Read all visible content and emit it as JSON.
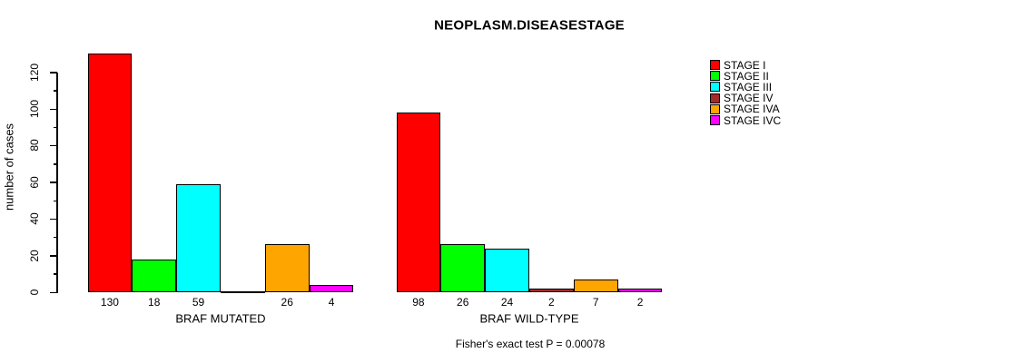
{
  "chart_data": {
    "type": "bar",
    "title": "NEOPLASM.DISEASESTAGE",
    "ylabel": "number of cases",
    "xlabel": "",
    "ylim": [
      0,
      120
    ],
    "y_major_tick_step": 20,
    "y_minor_tick_step": 10,
    "y_tick_labels": [
      "0",
      "20",
      "40",
      "60",
      "80",
      "100",
      "120"
    ],
    "grid": false,
    "legend_position": "right",
    "categories": [
      "STAGE I",
      "STAGE II",
      "STAGE III",
      "STAGE IV",
      "STAGE IVA",
      "STAGE IVC"
    ],
    "series_colors": [
      "#FF0000",
      "#00FF00",
      "#00FFFF",
      "#A52A2A",
      "#FFA500",
      "#FF00FF"
    ],
    "legend": [
      {
        "label": "STAGE I",
        "color": "#FF0000"
      },
      {
        "label": "STAGE II",
        "color": "#00FF00"
      },
      {
        "label": "STAGE III",
        "color": "#00FFFF"
      },
      {
        "label": "STAGE IV",
        "color": "#A52A2A"
      },
      {
        "label": "STAGE IVA",
        "color": "#FFA500"
      },
      {
        "label": "STAGE IVC",
        "color": "#FF00FF"
      }
    ],
    "groups": [
      {
        "label": "BRAF MUTATED",
        "values": [
          130,
          18,
          59,
          0,
          26,
          4
        ],
        "bar_labels": [
          "130",
          "18",
          "59",
          "",
          "26",
          "4"
        ]
      },
      {
        "label": "BRAF WILD-TYPE",
        "values": [
          98,
          26,
          24,
          2,
          7,
          2
        ],
        "bar_labels": [
          "98",
          "26",
          "24",
          "2",
          "7",
          "2"
        ]
      }
    ],
    "annotation": "Fisher's exact test P = 0.00078",
    "axis_color": "#000000",
    "bar_border_color": "#000000"
  }
}
